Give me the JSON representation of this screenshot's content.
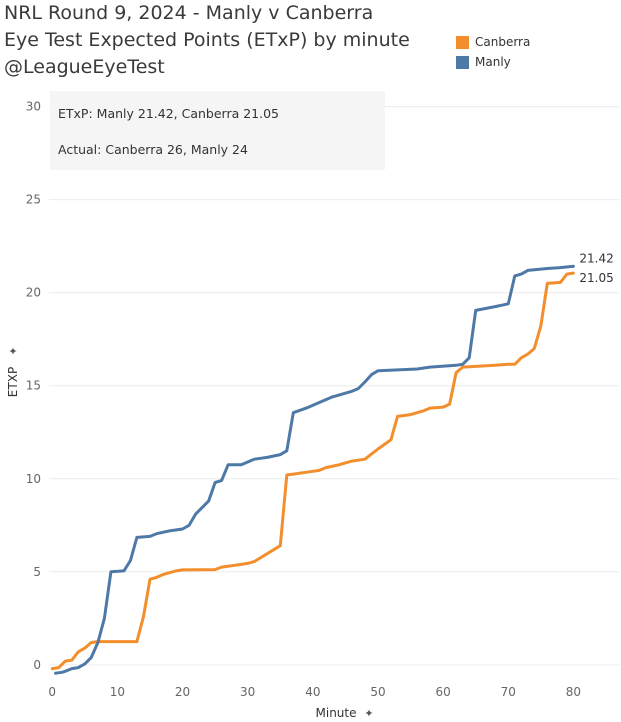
{
  "title_lines": [
    "NRL Round 9, 2024 - Manly v Canberra",
    "Eye Test Expected Points (ETxP)  by minute",
    "@LeagueEyeTest"
  ],
  "annotation": {
    "line1": "ETxP: Manly 21.42, Canberra 21.05",
    "line2": "Actual: Canberra 26, Manly 24"
  },
  "colors": {
    "canberra": "#F28E2B",
    "manly": "#4E79A7",
    "gridline": "#ececec",
    "annotation_bg": "#f5f5f5"
  },
  "chart_data": {
    "type": "line",
    "xlabel": "Minute",
    "ylabel": "ETXP",
    "xlim": [
      -0.5,
      87
    ],
    "ylim": [
      -0.6,
      31
    ],
    "x_ticks": [
      0,
      10,
      20,
      30,
      40,
      50,
      60,
      70,
      80
    ],
    "y_ticks": [
      0,
      5,
      10,
      15,
      20,
      25,
      30
    ],
    "grid": "horizontal",
    "legend": "top-right",
    "legend_entries": [
      "Canberra",
      "Manly"
    ],
    "series": [
      {
        "name": "Canberra",
        "color": "#F28E2B",
        "end_label": "21.05",
        "points": [
          [
            0,
            -0.2
          ],
          [
            1,
            -0.15
          ],
          [
            2,
            0.2
          ],
          [
            3,
            0.25
          ],
          [
            4,
            0.7
          ],
          [
            5,
            0.9
          ],
          [
            6,
            1.2
          ],
          [
            7,
            1.25
          ],
          [
            13,
            1.25
          ],
          [
            14,
            2.6
          ],
          [
            15,
            4.6
          ],
          [
            16,
            4.7
          ],
          [
            17,
            4.85
          ],
          [
            18,
            4.95
          ],
          [
            19,
            5.05
          ],
          [
            20,
            5.1
          ],
          [
            25,
            5.12
          ],
          [
            26,
            5.25
          ],
          [
            28,
            5.35
          ],
          [
            30,
            5.45
          ],
          [
            31,
            5.55
          ],
          [
            35,
            6.4
          ],
          [
            36,
            10.2
          ],
          [
            37,
            10.25
          ],
          [
            38,
            10.3
          ],
          [
            40,
            10.4
          ],
          [
            41,
            10.45
          ],
          [
            42,
            10.6
          ],
          [
            44,
            10.75
          ],
          [
            45,
            10.85
          ],
          [
            46,
            10.95
          ],
          [
            48,
            11.05
          ],
          [
            50,
            11.6
          ],
          [
            52,
            12.1
          ],
          [
            53,
            13.35
          ],
          [
            55,
            13.45
          ],
          [
            56,
            13.55
          ],
          [
            57,
            13.65
          ],
          [
            58,
            13.8
          ],
          [
            60,
            13.85
          ],
          [
            61,
            14.0
          ],
          [
            62,
            15.7
          ],
          [
            63,
            16.0
          ],
          [
            68,
            16.1
          ],
          [
            70,
            16.15
          ],
          [
            71,
            16.15
          ],
          [
            72,
            16.5
          ],
          [
            73,
            16.7
          ],
          [
            74,
            17.0
          ],
          [
            75,
            18.2
          ],
          [
            76,
            20.5
          ],
          [
            78,
            20.55
          ],
          [
            79,
            21.0
          ],
          [
            80,
            21.05
          ]
        ]
      },
      {
        "name": "Manly",
        "color": "#4E79A7",
        "end_label": "21.42",
        "points": [
          [
            0.5,
            -0.45
          ],
          [
            1.5,
            -0.4
          ],
          [
            2,
            -0.35
          ],
          [
            3,
            -0.2
          ],
          [
            4,
            -0.15
          ],
          [
            5,
            0.05
          ],
          [
            6,
            0.4
          ],
          [
            7,
            1.2
          ],
          [
            8,
            2.5
          ],
          [
            9,
            5.0
          ],
          [
            11,
            5.05
          ],
          [
            12,
            5.6
          ],
          [
            13,
            6.85
          ],
          [
            15,
            6.9
          ],
          [
            16,
            7.05
          ],
          [
            18,
            7.2
          ],
          [
            20,
            7.3
          ],
          [
            21,
            7.5
          ],
          [
            22,
            8.1
          ],
          [
            24,
            8.8
          ],
          [
            25,
            9.8
          ],
          [
            26,
            9.9
          ],
          [
            27,
            10.75
          ],
          [
            29,
            10.75
          ],
          [
            30,
            10.9
          ],
          [
            31,
            11.05
          ],
          [
            33,
            11.15
          ],
          [
            35,
            11.3
          ],
          [
            36,
            11.5
          ],
          [
            37,
            13.55
          ],
          [
            39,
            13.8
          ],
          [
            41,
            14.1
          ],
          [
            43,
            14.4
          ],
          [
            45,
            14.6
          ],
          [
            46,
            14.7
          ],
          [
            47,
            14.85
          ],
          [
            48,
            15.2
          ],
          [
            49,
            15.6
          ],
          [
            50,
            15.8
          ],
          [
            56,
            15.9
          ],
          [
            58,
            16.0
          ],
          [
            62,
            16.1
          ],
          [
            63,
            16.15
          ],
          [
            64,
            16.5
          ],
          [
            65,
            19.05
          ],
          [
            68,
            19.25
          ],
          [
            70,
            19.4
          ],
          [
            71,
            20.9
          ],
          [
            72,
            21.0
          ],
          [
            73,
            21.2
          ],
          [
            76,
            21.3
          ],
          [
            78,
            21.35
          ],
          [
            80,
            21.42
          ]
        ]
      }
    ]
  }
}
